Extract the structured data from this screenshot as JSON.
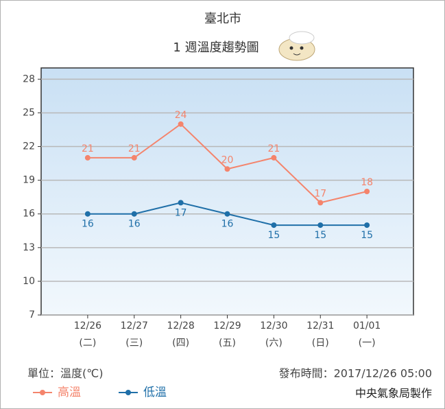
{
  "chart_data": {
    "type": "line",
    "title": "臺北市",
    "subtitle": "1 週溫度趨勢圖",
    "categories": [
      "12/26",
      "12/27",
      "12/28",
      "12/29",
      "12/30",
      "12/31",
      "01/01"
    ],
    "weekdays": [
      "(二)",
      "(三)",
      "(四)",
      "(五)",
      "(六)",
      "(日)",
      "(一)"
    ],
    "series": [
      {
        "name": "高溫",
        "color": "#f4846c",
        "values": [
          21,
          21,
          24,
          20,
          21,
          17,
          18
        ]
      },
      {
        "name": "低溫",
        "color": "#1f6fa8",
        "values": [
          16,
          16,
          17,
          16,
          15,
          15,
          15
        ]
      }
    ],
    "ylim": [
      7,
      29
    ],
    "yticks": [
      7,
      10,
      13,
      16,
      19,
      22,
      25,
      28
    ],
    "grid": true,
    "unit_note": "單位：溫度(℃)",
    "issued": "發布時間：2017/12/26 05:00",
    "credit": "中央氣象局製作"
  }
}
